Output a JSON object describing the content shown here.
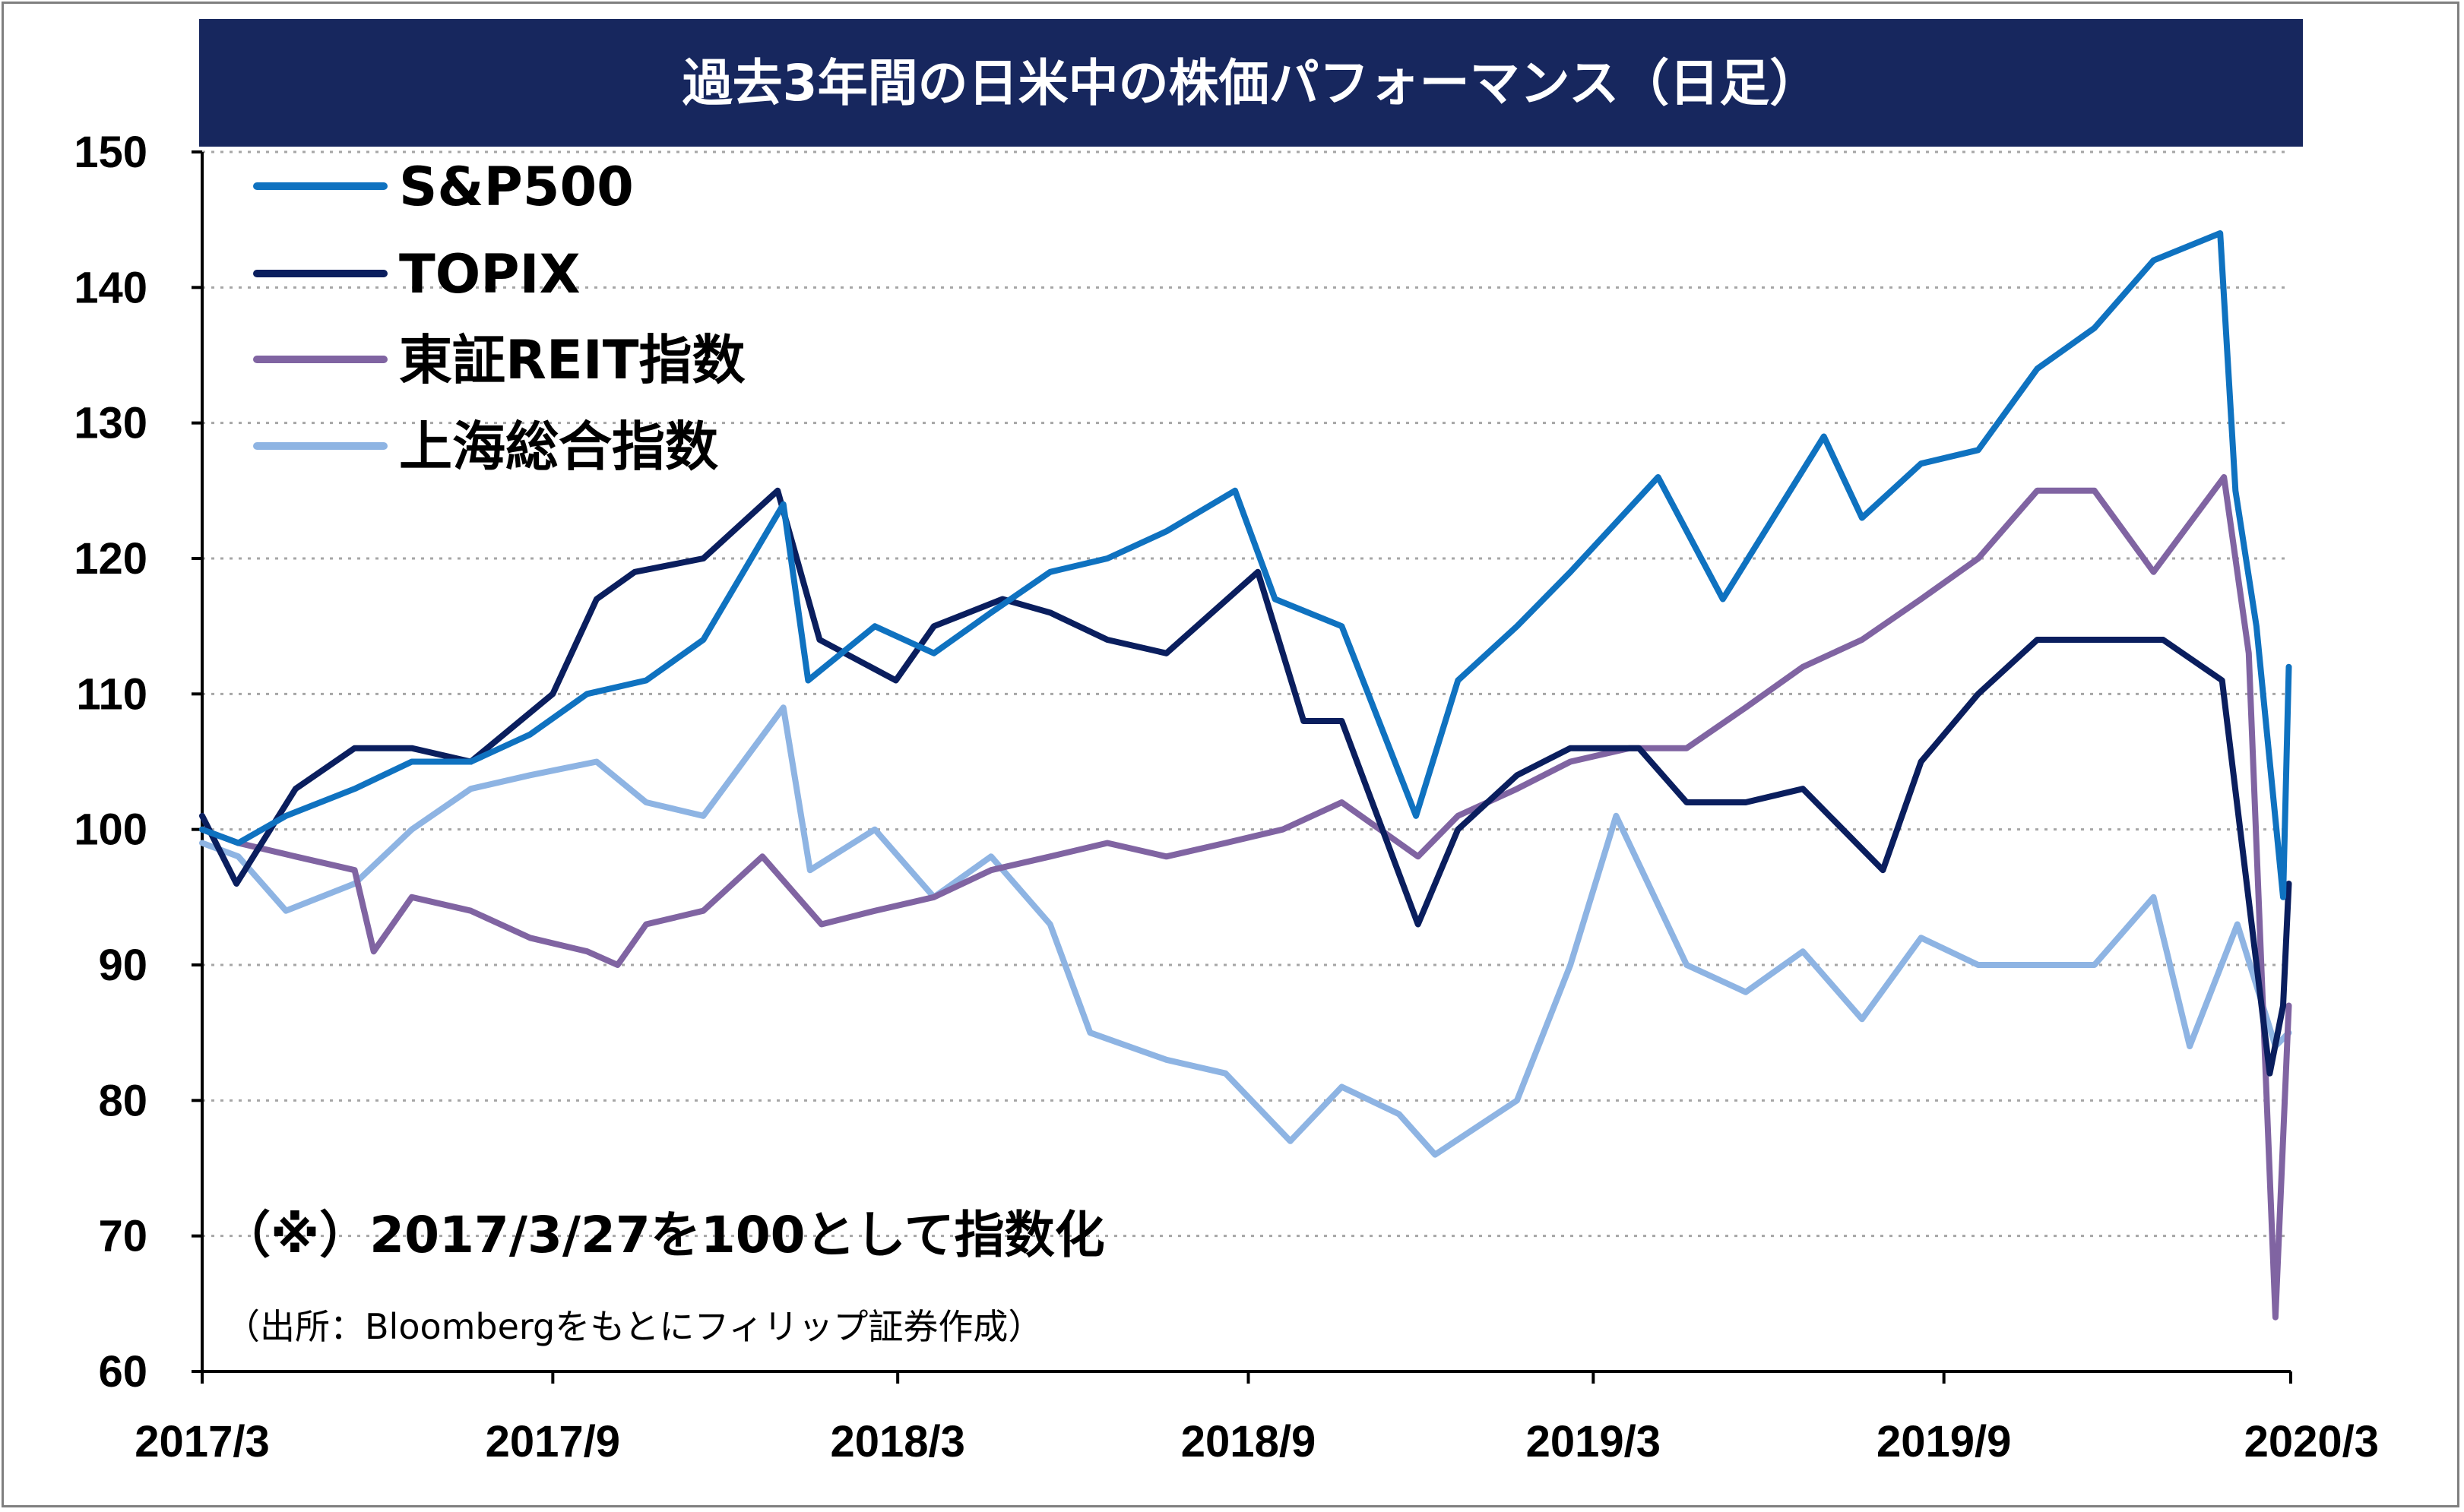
{
  "chart_data": {
    "type": "line",
    "title": "過去3年間の日米中の株価パフォーマンス（日足）",
    "note": "（※）2017/3/27を100として指数化",
    "source": "（出所：Bloombergをもとにフィリップ証券作成）",
    "x_tick_labels": [
      "2017/3",
      "2017/9",
      "2018/3",
      "2018/9",
      "2019/3",
      "2019/9",
      "2020/3"
    ],
    "x_ticks": [
      "2017-03-27",
      "2017-09-27",
      "2018-03-27",
      "2018-09-27",
      "2019-03-27",
      "2019-09-27",
      "2020-03-27"
    ],
    "y_ticks": [
      60,
      70,
      80,
      90,
      100,
      110,
      120,
      130,
      140,
      150
    ],
    "ylim": [
      60,
      150
    ],
    "xlim": [
      "2017-03-27",
      "2020-03-27"
    ],
    "grid": "horizontal dashed",
    "legend_position": "top-left",
    "series": [
      {
        "name": "S&P500",
        "color": "#0f72c0",
        "points": [
          [
            "2017-03-27",
            100
          ],
          [
            "2017-04-15",
            99
          ],
          [
            "2017-05-10",
            101
          ],
          [
            "2017-06-15",
            103
          ],
          [
            "2017-07-15",
            105
          ],
          [
            "2017-08-15",
            105
          ],
          [
            "2017-09-15",
            107
          ],
          [
            "2017-10-15",
            110
          ],
          [
            "2017-11-15",
            111
          ],
          [
            "2017-12-15",
            114
          ],
          [
            "2018-01-26",
            124
          ],
          [
            "2018-02-08",
            111
          ],
          [
            "2018-03-15",
            115
          ],
          [
            "2018-04-15",
            113
          ],
          [
            "2018-05-15",
            116
          ],
          [
            "2018-06-15",
            119
          ],
          [
            "2018-07-15",
            120
          ],
          [
            "2018-08-15",
            122
          ],
          [
            "2018-09-20",
            125
          ],
          [
            "2018-10-11",
            117
          ],
          [
            "2018-11-15",
            115
          ],
          [
            "2018-12-24",
            101
          ],
          [
            "2019-01-15",
            111
          ],
          [
            "2019-02-15,",
            115
          ],
          [
            "2019-03-15",
            119
          ],
          [
            "2019-04-30",
            126
          ],
          [
            "2019-06-03",
            117
          ],
          [
            "2019-07-26",
            129
          ],
          [
            "2019-08-15",
            123
          ],
          [
            "2019-09-15",
            127
          ],
          [
            "2019-10-15",
            128
          ],
          [
            "2019-11-15",
            134
          ],
          [
            "2019-12-15",
            137
          ],
          [
            "2020-01-15",
            142
          ],
          [
            "2020-02-19",
            144
          ],
          [
            "2020-02-27",
            125
          ],
          [
            "2020-03-09",
            115
          ],
          [
            "2020-03-23",
            95
          ],
          [
            "2020-03-26",
            112
          ]
        ]
      },
      {
        "name": "TOPIX",
        "color": "#0a1e5e",
        "points": [
          [
            "2017-03-27",
            101
          ],
          [
            "2017-04-14",
            96
          ],
          [
            "2017-05-15",
            103
          ],
          [
            "2017-06-15",
            106
          ],
          [
            "2017-07-15",
            106
          ],
          [
            "2017-08-15",
            105
          ],
          [
            "2017-09-27",
            110
          ],
          [
            "2017-10-20",
            117
          ],
          [
            "2017-11-09",
            119
          ],
          [
            "2017-12-15",
            120
          ],
          [
            "2018-01-23",
            125
          ],
          [
            "2018-02-14",
            114
          ],
          [
            "2018-03-26",
            111
          ],
          [
            "2018-04-15",
            115
          ],
          [
            "2018-05-21",
            117
          ],
          [
            "2018-06-15",
            116
          ],
          [
            "2018-07-15",
            114
          ],
          [
            "2018-08-15",
            113
          ],
          [
            "2018-10-02",
            119
          ],
          [
            "2018-10-26",
            108
          ],
          [
            "2018-11-15",
            108
          ],
          [
            "2018-12-25",
            93
          ],
          [
            "2019-01-15",
            100
          ],
          [
            "2019-02-15",
            104
          ],
          [
            "2019-03-15",
            106
          ],
          [
            "2019-04-20",
            106
          ],
          [
            "2019-05-15",
            102
          ],
          [
            "2019-06-15",
            102
          ],
          [
            "2019-07-15",
            103
          ],
          [
            "2019-08-26",
            97
          ],
          [
            "2019-09-15",
            105
          ],
          [
            "2019-10-15",
            110
          ],
          [
            "2019-11-15",
            114
          ],
          [
            "2019-12-15",
            114
          ],
          [
            "2020-01-20",
            114
          ],
          [
            "2020-02-20",
            111
          ],
          [
            "2020-03-16",
            82
          ],
          [
            "2020-03-23",
            87
          ],
          [
            "2020-03-26",
            96
          ]
        ]
      },
      {
        "name": "東証REIT指数",
        "color": "#8064a2",
        "points": [
          [
            "2017-03-27",
            100
          ],
          [
            "2017-04-15",
            99
          ],
          [
            "2017-05-15",
            98
          ],
          [
            "2017-06-15",
            97
          ],
          [
            "2017-06-25",
            91
          ],
          [
            "2017-07-15",
            95
          ],
          [
            "2017-08-15",
            94
          ],
          [
            "2017-09-15",
            92
          ],
          [
            "2017-10-15",
            91
          ],
          [
            "2017-10-31",
            90
          ],
          [
            "2017-11-15",
            93
          ],
          [
            "2017-12-15",
            94
          ],
          [
            "2018-01-15",
            98
          ],
          [
            "2018-02-15",
            93
          ],
          [
            "2018-03-15",
            94
          ],
          [
            "2018-04-15",
            95
          ],
          [
            "2018-05-15",
            97
          ],
          [
            "2018-06-15",
            98
          ],
          [
            "2018-07-15",
            99
          ],
          [
            "2018-08-15",
            98
          ],
          [
            "2018-09-15",
            99
          ],
          [
            "2018-10-15",
            100
          ],
          [
            "2018-11-15",
            102
          ],
          [
            "2018-12-25",
            98
          ],
          [
            "2019-01-15",
            101
          ],
          [
            "2019-02-15",
            103
          ],
          [
            "2019-03-15",
            105
          ],
          [
            "2019-04-15",
            106
          ],
          [
            "2019-05-15",
            106
          ],
          [
            "2019-06-15",
            109
          ],
          [
            "2019-07-15",
            112
          ],
          [
            "2019-08-15",
            114
          ],
          [
            "2019-09-15",
            117
          ],
          [
            "2019-10-15",
            120
          ],
          [
            "2019-11-15",
            125
          ],
          [
            "2019-12-15",
            125
          ],
          [
            "2020-01-15",
            119
          ],
          [
            "2020-02-21",
            126
          ],
          [
            "2020-03-05",
            113
          ],
          [
            "2020-03-19",
            64
          ],
          [
            "2020-03-26",
            87
          ]
        ]
      },
      {
        "name": "上海総合指数",
        "color": "#8eb4e3",
        "points": [
          [
            "2017-03-27",
            99
          ],
          [
            "2017-04-15",
            98
          ],
          [
            "2017-05-10",
            94
          ],
          [
            "2017-06-15",
            96
          ],
          [
            "2017-07-15",
            100
          ],
          [
            "2017-08-15",
            103
          ],
          [
            "2017-09-15",
            104
          ],
          [
            "2017-10-20",
            105
          ],
          [
            "2017-11-15",
            102
          ],
          [
            "2017-12-15",
            101
          ],
          [
            "2018-01-26",
            109
          ],
          [
            "2018-02-09",
            97
          ],
          [
            "2018-03-15",
            100
          ],
          [
            "2018-04-15",
            95
          ],
          [
            "2018-05-15",
            98
          ],
          [
            "2018-06-15",
            93
          ],
          [
            "2018-07-06",
            85
          ],
          [
            "2018-08-15",
            83
          ],
          [
            "2018-09-15",
            82
          ],
          [
            "2018-10-19",
            77
          ],
          [
            "2018-11-15",
            81
          ],
          [
            "2018-12-15",
            79
          ],
          [
            "2019-01-03",
            76
          ],
          [
            "2019-02-15",
            80
          ],
          [
            "2019-03-15",
            90
          ],
          [
            "2019-04-08",
            101
          ],
          [
            "2019-05-15",
            90
          ],
          [
            "2019-06-15",
            88
          ],
          [
            "2019-07-15",
            91
          ],
          [
            "2019-08-15",
            86
          ],
          [
            "2019-09-15",
            92
          ],
          [
            "2019-10-15",
            90
          ],
          [
            "2019-11-15",
            90
          ],
          [
            "2019-12-15",
            90
          ],
          [
            "2020-01-15",
            95
          ],
          [
            "2020-02-03",
            84
          ],
          [
            "2020-02-28",
            93
          ],
          [
            "2020-03-19",
            84
          ],
          [
            "2020-03-26",
            85
          ]
        ]
      }
    ]
  }
}
